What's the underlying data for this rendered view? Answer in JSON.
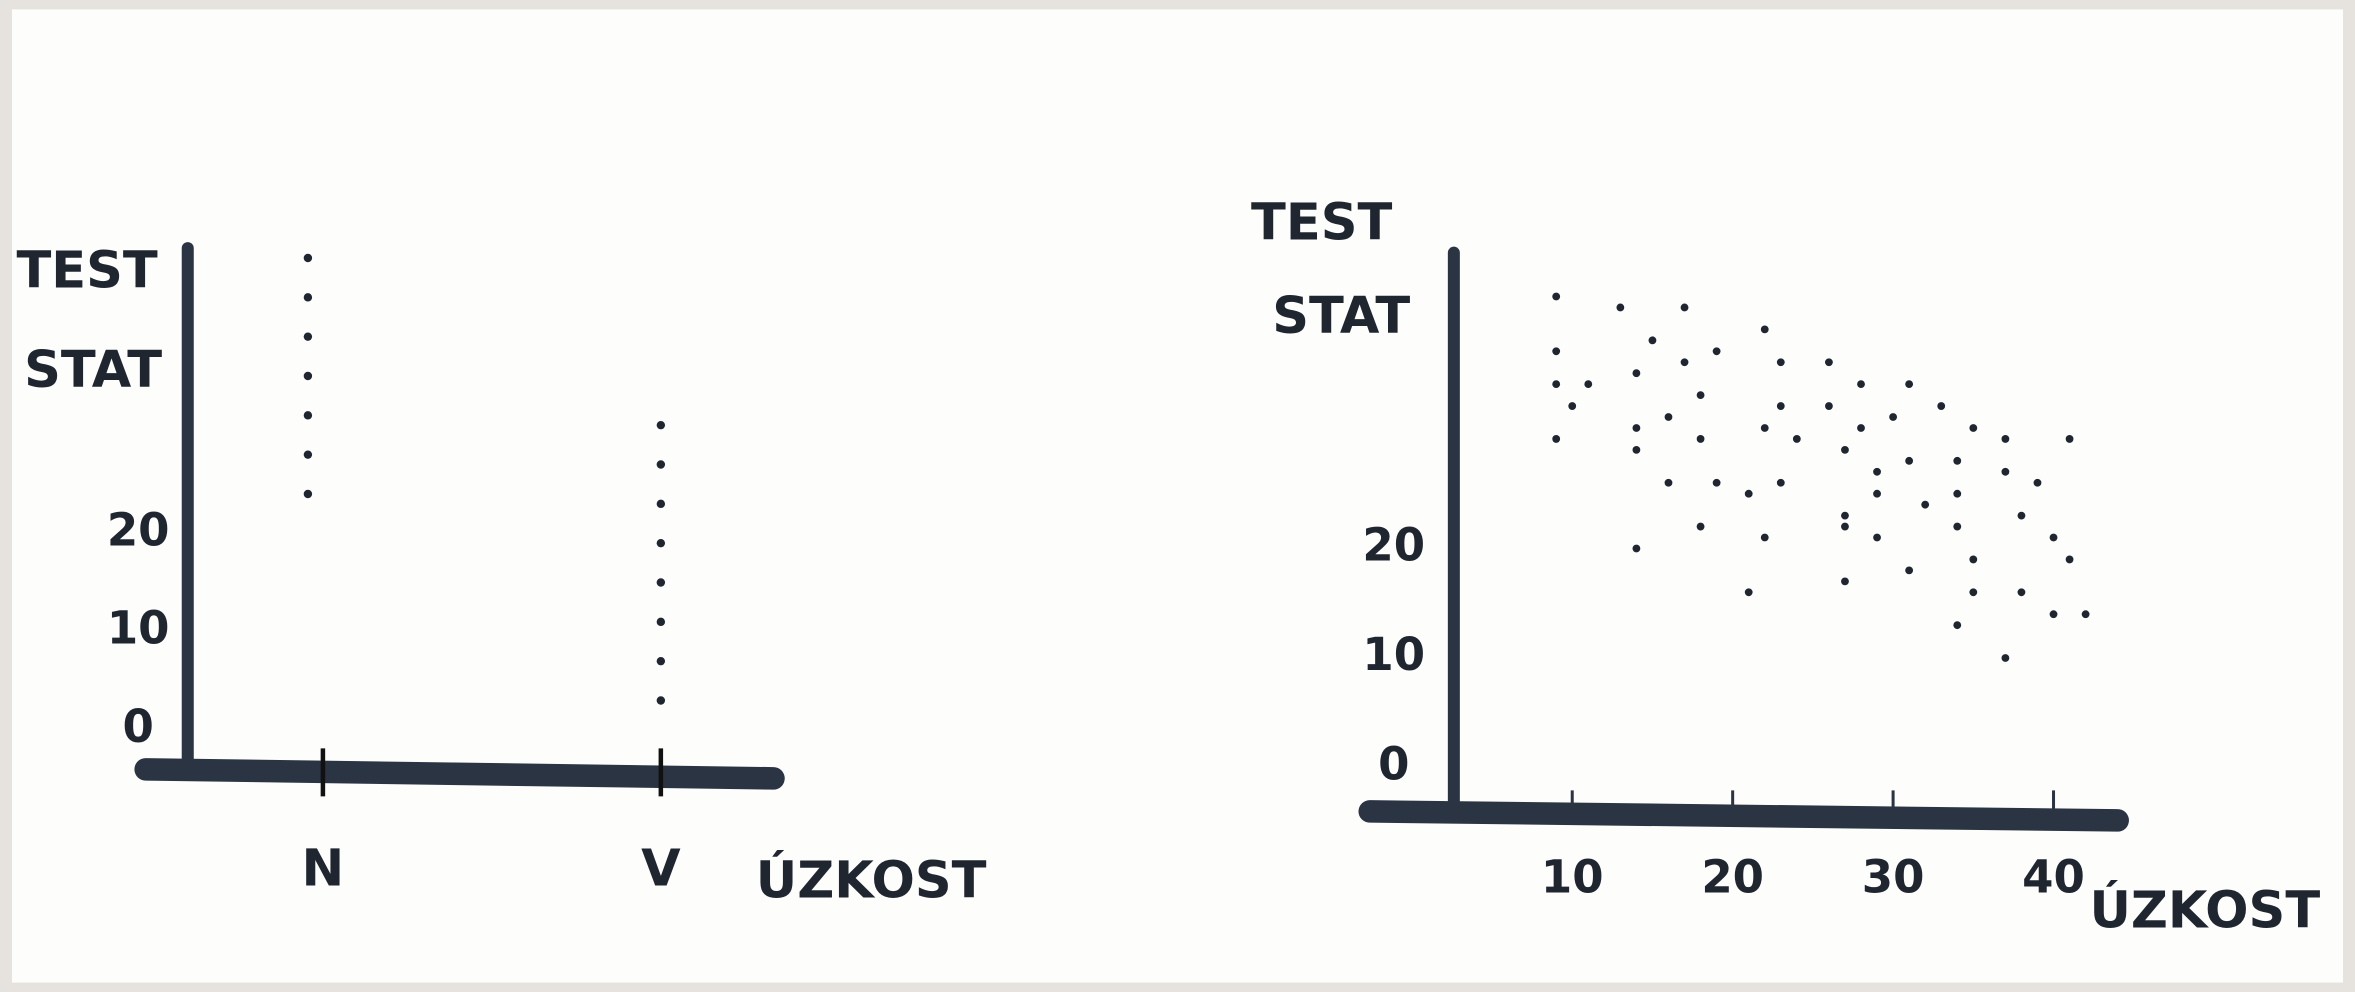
{
  "chart_data": [
    {
      "type": "strip",
      "ylabel": [
        "TEST",
        "STAT"
      ],
      "xlabel": "ÚZKOST",
      "categories": [
        "N",
        "V"
      ],
      "values": [
        [
          48,
          44,
          40,
          36,
          32,
          28,
          24
        ],
        [
          31,
          27,
          23,
          19,
          15,
          11,
          7,
          3
        ]
      ],
      "ylim": [
        -4,
        49
      ],
      "yticks": [
        0,
        10,
        20
      ],
      "color": "#1f2630"
    },
    {
      "type": "scatter",
      "ylabel": [
        "TEST",
        "STAT"
      ],
      "xlabel": "ÚZKOST",
      "x": [
        9,
        13,
        17,
        22,
        9,
        15,
        19,
        11,
        14,
        17,
        23,
        26,
        28,
        31,
        9,
        10,
        16,
        18,
        23,
        26,
        30,
        33,
        9,
        14,
        14,
        18,
        22,
        24,
        28,
        35,
        37,
        41,
        27,
        31,
        16,
        19,
        21,
        23,
        29,
        34,
        37,
        39,
        27,
        29,
        32,
        34,
        18,
        22,
        27,
        29,
        34,
        38,
        40,
        14,
        41,
        35,
        21,
        27,
        31,
        35,
        38,
        34,
        40,
        42,
        37
      ],
      "values": [
        43,
        42,
        42,
        40,
        38,
        39,
        38,
        35,
        36,
        37,
        37,
        37,
        35,
        35,
        35,
        33,
        32,
        34,
        33,
        33,
        32,
        33,
        30,
        31,
        29,
        30,
        31,
        30,
        31,
        31,
        30,
        30,
        29,
        28,
        26,
        26,
        25,
        26,
        27,
        28,
        27,
        26,
        23,
        25,
        24,
        25,
        22,
        21,
        22,
        21,
        22,
        23,
        21,
        20,
        19,
        19,
        16,
        17,
        18,
        16,
        16,
        13,
        14,
        14,
        10
      ],
      "xlim": [
        0,
        44
      ],
      "xticks": [
        10,
        20,
        30,
        40
      ],
      "ylim": [
        -4,
        47
      ],
      "yticks": [
        0,
        10,
        20
      ],
      "color": "#1f2630"
    }
  ]
}
